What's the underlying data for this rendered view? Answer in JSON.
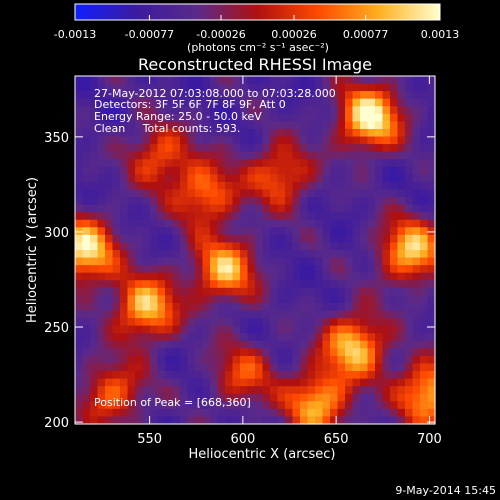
{
  "chart_data": {
    "type": "heatmap",
    "title": "Reconstructed RHESSI Image",
    "xlabel": "Heliocentric X (arcsec)",
    "ylabel": "Heliocentric Y (arcsec)",
    "xlim": [
      510,
      703
    ],
    "ylim": [
      199,
      382
    ],
    "x_ticks": [
      550,
      600,
      650,
      700
    ],
    "y_ticks": [
      200,
      250,
      300,
      350
    ],
    "colorbar": {
      "range": [
        -0.0013,
        0.0013
      ],
      "tick_values": [
        -0.0013,
        -0.00077,
        -0.00026,
        0.00026,
        0.00077,
        0.0013
      ],
      "tick_labels": [
        "-0.0013",
        "-0.00077",
        "-0.00026",
        "0.00026",
        "0.00077",
        "0.0013"
      ],
      "units_label": "(photons cm⁻² s⁻¹ asec⁻²)",
      "colors": [
        "#1020ff",
        "#3a1aa0",
        "#5a2a8a",
        "#b01010",
        "#ff4a00",
        "#ffb020",
        "#ffffd0"
      ]
    },
    "annotations": {
      "time": "27-May-2012 07:03:08.000 to 07:03:28.000",
      "detectors": "Detectors: 3F 5F 6F 7F 8F 9F, Att 0",
      "energy": "Energy Range: 25.0 - 50.0 keV",
      "clean": "Clean     Total counts: 593.",
      "peak": "Position of Peak = [668,360]"
    },
    "peak": [
      668,
      360
    ],
    "sources": [
      {
        "x": 668,
        "y": 360,
        "amp": 1.0
      },
      {
        "x": 515,
        "y": 290,
        "amp": 0.95
      },
      {
        "x": 548,
        "y": 260,
        "amp": 0.85
      },
      {
        "x": 590,
        "y": 280,
        "amp": 0.8
      },
      {
        "x": 660,
        "y": 240,
        "amp": 0.85
      },
      {
        "x": 690,
        "y": 290,
        "amp": 0.85
      },
      {
        "x": 640,
        "y": 210,
        "amp": 0.8
      },
      {
        "x": 530,
        "y": 215,
        "amp": 0.6
      },
      {
        "x": 580,
        "y": 320,
        "amp": 0.65
      },
      {
        "x": 620,
        "y": 330,
        "amp": 0.6
      },
      {
        "x": 700,
        "y": 215,
        "amp": 0.85
      },
      {
        "x": 555,
        "y": 340,
        "amp": 0.55
      },
      {
        "x": 600,
        "y": 225,
        "amp": 0.5
      }
    ]
  },
  "footer": {
    "date": "9-May-2014 15:45"
  }
}
